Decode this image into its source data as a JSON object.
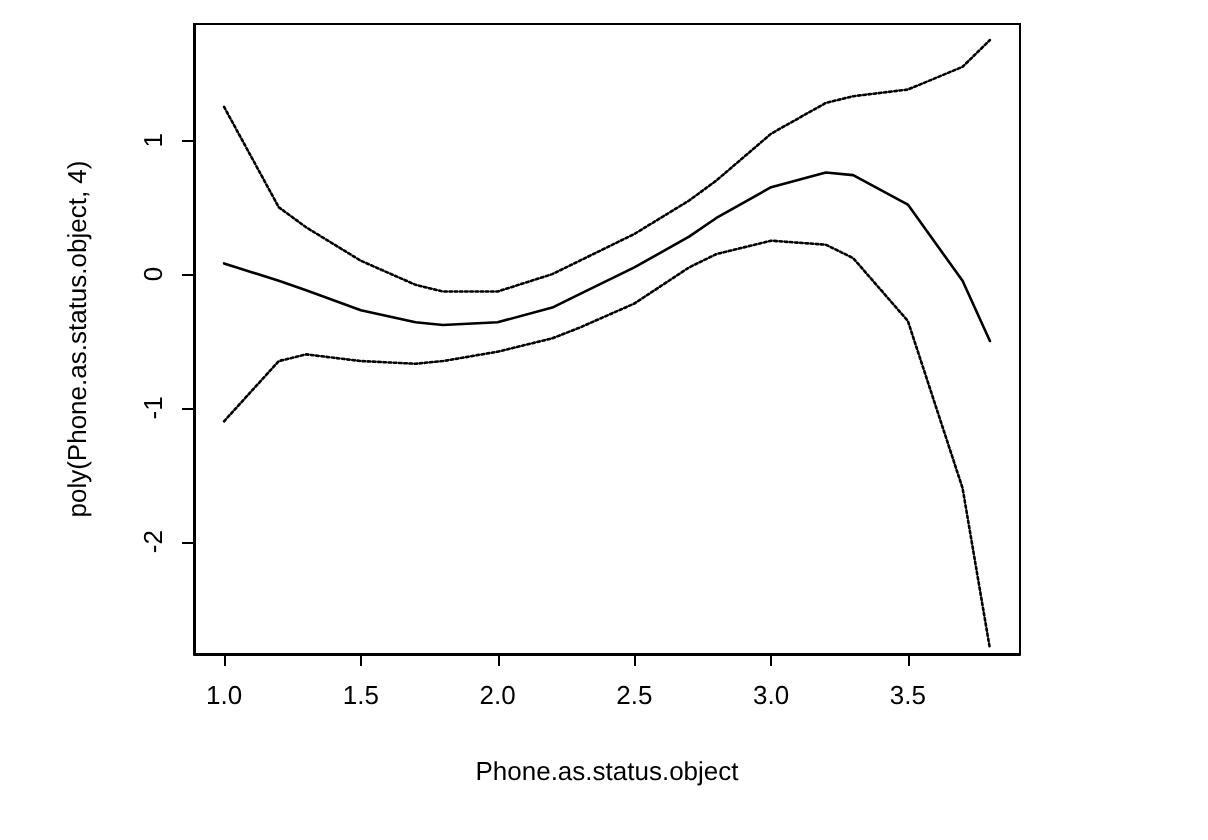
{
  "chart_data": {
    "type": "line",
    "xlabel": "Phone.as.status.object",
    "ylabel": "poly(Phone.as.status.object, 4)",
    "x": [
      1.0,
      1.2,
      1.3,
      1.5,
      1.7,
      1.8,
      2.0,
      2.2,
      2.3,
      2.5,
      2.7,
      2.8,
      3.0,
      3.2,
      3.3,
      3.5,
      3.7,
      3.8
    ],
    "series": [
      {
        "color": "#000000",
        "line_style": "solid",
        "values": [
          0.08,
          -0.05,
          -0.12,
          -0.27,
          -0.36,
          -0.38,
          -0.36,
          -0.25,
          -0.15,
          0.05,
          0.28,
          0.42,
          0.65,
          0.76,
          0.74,
          0.52,
          -0.05,
          -0.5
        ]
      },
      {
        "color": "#000000",
        "line_style": "dotted",
        "values": [
          1.25,
          0.5,
          0.35,
          0.1,
          -0.08,
          -0.13,
          -0.13,
          0.0,
          0.1,
          0.3,
          0.55,
          0.7,
          1.05,
          1.28,
          1.33,
          1.38,
          1.55,
          1.75
        ]
      },
      {
        "color": "#000000",
        "line_style": "dotted",
        "values": [
          -1.1,
          -0.65,
          -0.6,
          -0.65,
          -0.67,
          -0.65,
          -0.58,
          -0.48,
          -0.4,
          -0.22,
          0.05,
          0.15,
          0.25,
          0.22,
          0.12,
          -0.35,
          -1.6,
          -2.8
        ]
      }
    ],
    "xlim": [
      0.89,
      3.91
    ],
    "ylim": [
      -2.84,
      1.87
    ],
    "xticks": [
      {
        "value": 1,
        "label": "1.0"
      },
      {
        "value": 1.5,
        "label": "1.5"
      },
      {
        "value": 2,
        "label": "2.0"
      },
      {
        "value": 2.5,
        "label": "2.5"
      },
      {
        "value": 3,
        "label": "3.0"
      },
      {
        "value": 3.5,
        "label": "3.5"
      }
    ],
    "yticks": [
      -2,
      -1,
      0,
      1
    ],
    "grid": false,
    "marker": "none"
  }
}
